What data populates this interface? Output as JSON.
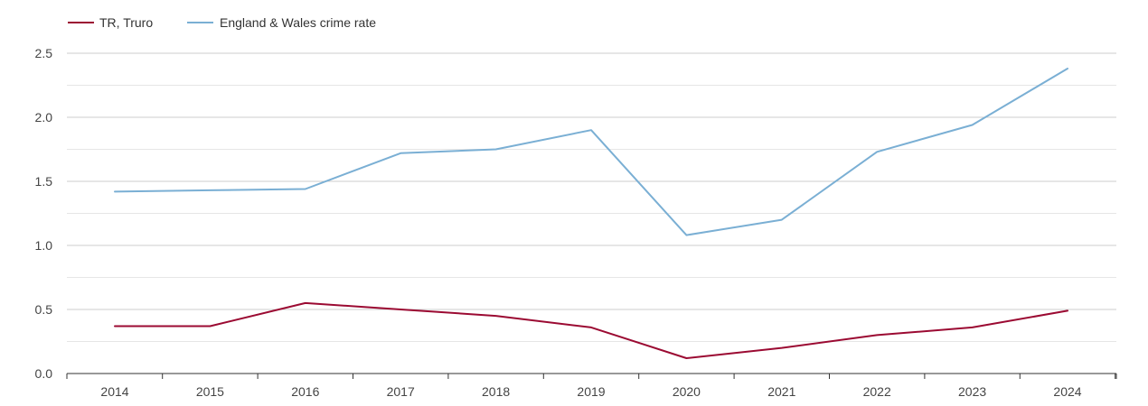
{
  "chart_data": {
    "type": "line",
    "title": "",
    "xlabel": "",
    "ylabel": "",
    "categories": [
      "2014",
      "2015",
      "2016",
      "2017",
      "2018",
      "2019",
      "2020",
      "2021",
      "2022",
      "2023",
      "2024"
    ],
    "ylim": [
      0,
      2.5
    ],
    "yticks": [
      "0.0",
      "0.5",
      "1.0",
      "1.5",
      "2.0",
      "2.5"
    ],
    "grid": true,
    "legend_position": "top-left",
    "series": [
      {
        "name": "TR, Truro",
        "color": "#9b0a32",
        "values": [
          0.37,
          0.37,
          0.55,
          0.5,
          0.45,
          0.36,
          0.12,
          0.2,
          0.3,
          0.36,
          0.49
        ]
      },
      {
        "name": "England & Wales crime rate",
        "color": "#7aafd4",
        "values": [
          1.42,
          1.43,
          1.44,
          1.72,
          1.75,
          1.9,
          1.08,
          1.2,
          1.73,
          1.94,
          2.38
        ]
      }
    ]
  }
}
